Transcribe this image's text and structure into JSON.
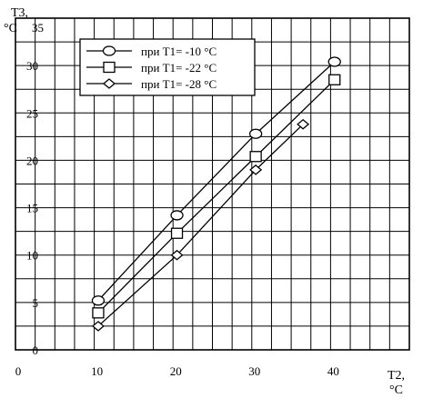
{
  "chart_data": {
    "type": "line",
    "title": "",
    "xlabel": "T2,",
    "xlabel_unit": "°C",
    "ylabel": "T3,",
    "ylabel_unit": "°C",
    "xlim": [
      0,
      50
    ],
    "ylim": [
      0,
      35
    ],
    "x_ticks": [
      "0",
      "10",
      "20",
      "30",
      "40"
    ],
    "y_ticks": [
      "0",
      "5",
      "10",
      "15",
      "20",
      "25",
      "30",
      "35"
    ],
    "grid": true,
    "legend_position": "top-left",
    "series": [
      {
        "name": "при T1= -10 °C",
        "marker": "circle",
        "points": [
          [
            10.5,
            5.2
          ],
          [
            20.5,
            14.2
          ],
          [
            30.5,
            22.8
          ],
          [
            40.5,
            30.4
          ]
        ]
      },
      {
        "name": "при T1= -22 °C",
        "marker": "square",
        "points": [
          [
            10.5,
            3.9
          ],
          [
            20.5,
            12.3
          ],
          [
            30.5,
            20.4
          ],
          [
            40.5,
            28.5
          ]
        ]
      },
      {
        "name": "при T1= -28 °C",
        "marker": "diamond",
        "points": [
          [
            10.5,
            2.5
          ],
          [
            20.5,
            10.0
          ],
          [
            30.5,
            19.0
          ],
          [
            36.5,
            23.8
          ]
        ]
      }
    ]
  }
}
